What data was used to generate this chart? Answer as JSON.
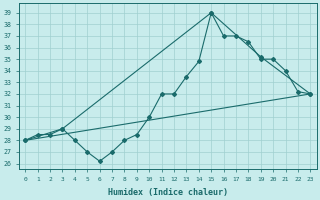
{
  "xlabel": "Humidex (Indice chaleur)",
  "bg_color": "#c8ecec",
  "line_color": "#1a6b6b",
  "grid_color": "#a0d0d0",
  "xlim": [
    -0.5,
    23.5
  ],
  "ylim": [
    25.5,
    39.8
  ],
  "yticks": [
    26,
    27,
    28,
    29,
    30,
    31,
    32,
    33,
    34,
    35,
    36,
    37,
    38,
    39
  ],
  "xticks": [
    0,
    1,
    2,
    3,
    4,
    5,
    6,
    7,
    8,
    9,
    10,
    11,
    12,
    13,
    14,
    15,
    16,
    17,
    18,
    19,
    20,
    21,
    22,
    23
  ],
  "line1_x": [
    0,
    1,
    2,
    3,
    4,
    5,
    6,
    7,
    8,
    9,
    10,
    11,
    12,
    13,
    14,
    15,
    16,
    17,
    18,
    19,
    20,
    21,
    22,
    23
  ],
  "line1_y": [
    28.0,
    28.5,
    28.5,
    29.0,
    28.0,
    27.0,
    26.2,
    27.0,
    28.0,
    28.5,
    30.0,
    32.0,
    32.0,
    33.5,
    34.8,
    39.0,
    37.0,
    37.0,
    36.5,
    35.0,
    35.0,
    34.0,
    32.2,
    32.0
  ],
  "line2_x": [
    0,
    3,
    15,
    19,
    23
  ],
  "line2_y": [
    28.0,
    29.0,
    39.0,
    35.2,
    32.0
  ],
  "line3_x": [
    0,
    23
  ],
  "line3_y": [
    28.0,
    32.0
  ]
}
